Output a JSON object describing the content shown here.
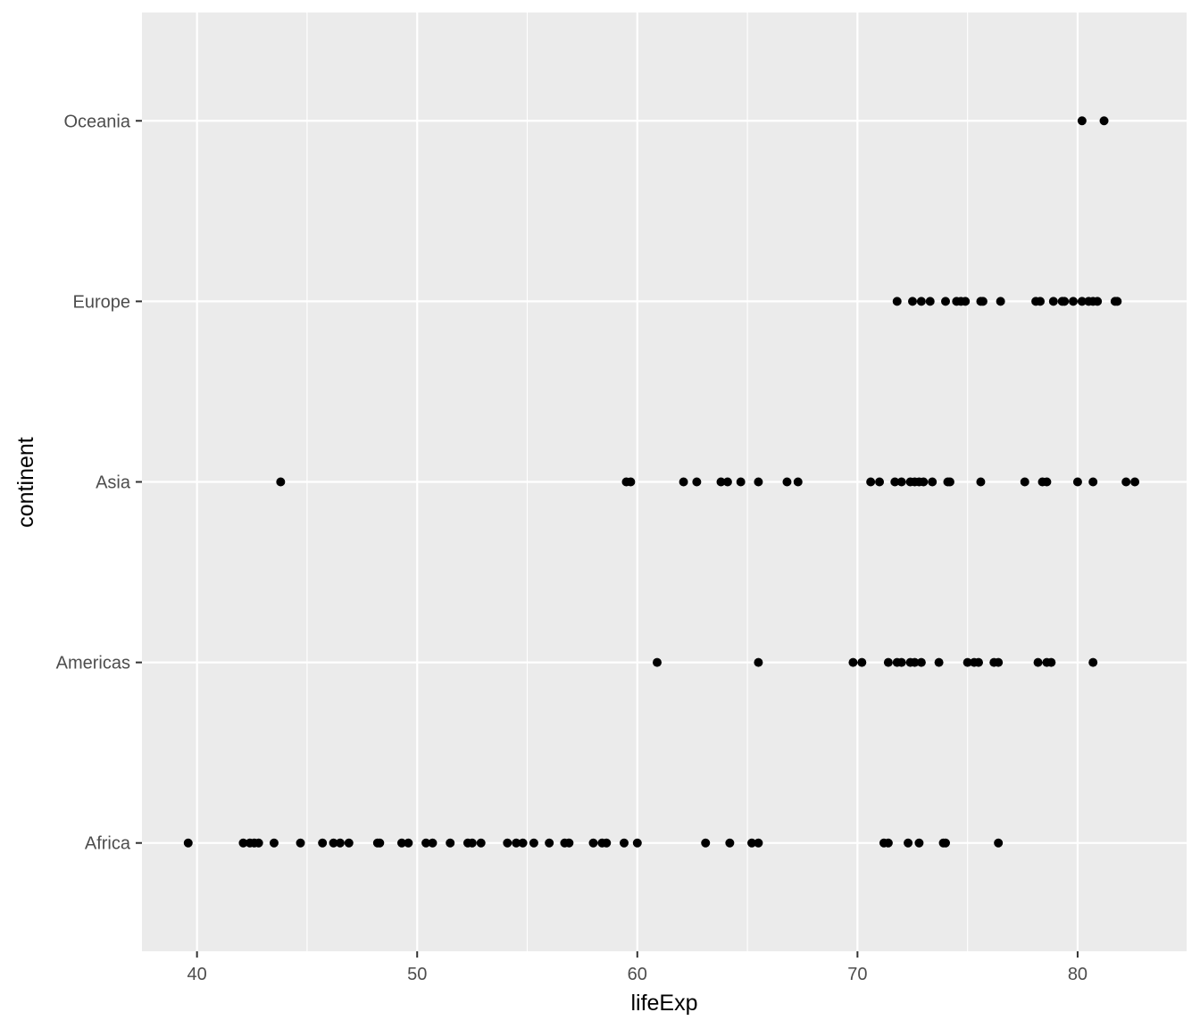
{
  "chart_data": {
    "type": "scatter",
    "title": "",
    "xlabel": "lifeExp",
    "ylabel": "continent",
    "xlim": [
      37.5,
      84.95
    ],
    "x_ticks": [
      40,
      50,
      60,
      70,
      80
    ],
    "x_tick_labels": [
      "40",
      "50",
      "60",
      "70",
      "80"
    ],
    "categories": [
      "Africa",
      "Americas",
      "Asia",
      "Europe",
      "Oceania"
    ],
    "grid": true,
    "legend": "none",
    "colors": {
      "panel": "#ebebeb",
      "grid": "#ffffff",
      "point": "#000000"
    },
    "series": [
      {
        "category": "Africa",
        "x": [
          39.6,
          42.1,
          42.4,
          42.6,
          42.8,
          43.5,
          44.7,
          45.7,
          46.2,
          46.5,
          46.9,
          48.2,
          48.3,
          49.3,
          49.6,
          50.4,
          50.7,
          51.5,
          52.3,
          52.5,
          52.9,
          54.1,
          54.5,
          54.8,
          55.3,
          56.0,
          56.7,
          56.9,
          58.0,
          58.4,
          58.6,
          59.4,
          60.0,
          63.1,
          64.2,
          65.2,
          65.5,
          71.2,
          71.4,
          72.3,
          72.8,
          73.9,
          74.0,
          76.4
        ]
      },
      {
        "category": "Americas",
        "x": [
          60.9,
          65.5,
          69.8,
          70.2,
          71.4,
          71.8,
          72.0,
          72.4,
          72.6,
          72.9,
          73.7,
          75.0,
          75.3,
          75.5,
          76.2,
          76.4,
          78.2,
          78.6,
          78.8,
          80.7
        ]
      },
      {
        "category": "Asia",
        "x": [
          43.8,
          59.5,
          59.7,
          62.1,
          62.7,
          63.8,
          64.1,
          64.7,
          65.5,
          66.8,
          67.3,
          70.6,
          71.0,
          71.7,
          72.0,
          72.4,
          72.6,
          72.8,
          73.0,
          73.4,
          74.1,
          74.2,
          75.6,
          77.6,
          78.4,
          78.6,
          80.0,
          80.7,
          82.2,
          82.6
        ]
      },
      {
        "category": "Europe",
        "x": [
          71.8,
          72.5,
          72.9,
          73.3,
          74.0,
          74.5,
          74.7,
          74.9,
          75.6,
          75.7,
          76.5,
          78.1,
          78.3,
          78.9,
          79.3,
          79.4,
          79.8,
          80.2,
          80.5,
          80.7,
          80.9,
          81.7,
          81.8
        ]
      },
      {
        "category": "Oceania",
        "x": [
          80.2,
          81.2
        ]
      }
    ]
  }
}
